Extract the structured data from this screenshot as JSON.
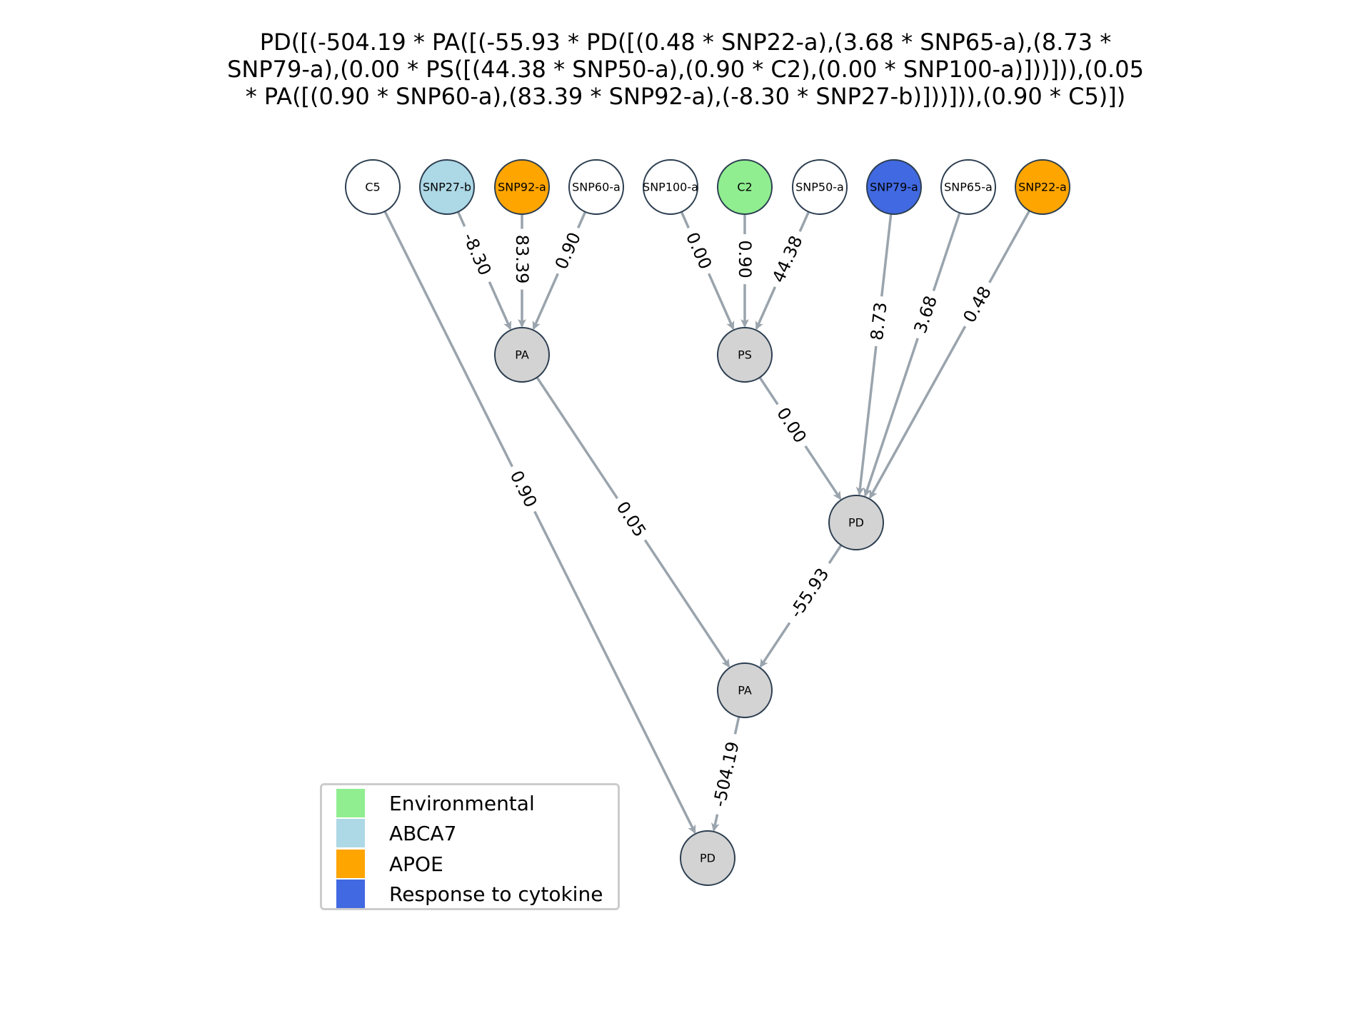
{
  "title_lines": [
    "PD([(-504.19 * PA([(-55.93 * PD([(0.48 * SNP22-a),(3.68 * SNP65-a),(8.73 *",
    "SNP79-a),(0.00 * PS([(44.38 * SNP50-a),(0.90 * C2),(0.00 * SNP100-a)]))])),(0.05",
    "* PA([(0.90 * SNP60-a),(83.39 * SNP92-a),(-8.30 * SNP27-b)]))])),(0.90 * C5)])"
  ],
  "nodes": [
    {
      "id": "C5",
      "label": "C5",
      "color": "#ffffff"
    },
    {
      "id": "SNP27-b",
      "label": "SNP27-b",
      "color": "#add8e6"
    },
    {
      "id": "SNP92-a",
      "label": "SNP92-a",
      "color": "#ffa500"
    },
    {
      "id": "SNP60-a",
      "label": "SNP60-a",
      "color": "#ffffff"
    },
    {
      "id": "SNP100-a",
      "label": "SNP100-a",
      "color": "#ffffff"
    },
    {
      "id": "C2",
      "label": "C2",
      "color": "#90ee90"
    },
    {
      "id": "SNP50-a",
      "label": "SNP50-a",
      "color": "#ffffff"
    },
    {
      "id": "SNP79-a",
      "label": "SNP79-a",
      "color": "#4169e1"
    },
    {
      "id": "SNP65-a",
      "label": "SNP65-a",
      "color": "#ffffff"
    },
    {
      "id": "SNP22-a",
      "label": "SNP22-a",
      "color": "#ffa500"
    },
    {
      "id": "PA1",
      "label": "PA",
      "color": "#d3d3d3"
    },
    {
      "id": "PS",
      "label": "PS",
      "color": "#d3d3d3"
    },
    {
      "id": "PD1",
      "label": "PD",
      "color": "#d3d3d3"
    },
    {
      "id": "PA2",
      "label": "PA",
      "color": "#d3d3d3"
    },
    {
      "id": "PD2",
      "label": "PD",
      "color": "#d3d3d3"
    }
  ],
  "edges": [
    {
      "from": "SNP27-b",
      "to": "PA1",
      "weight": "-8.30"
    },
    {
      "from": "SNP92-a",
      "to": "PA1",
      "weight": "83.39"
    },
    {
      "from": "SNP60-a",
      "to": "PA1",
      "weight": "0.90"
    },
    {
      "from": "SNP100-a",
      "to": "PS",
      "weight": "0.00"
    },
    {
      "from": "C2",
      "to": "PS",
      "weight": "0.90"
    },
    {
      "from": "SNP50-a",
      "to": "PS",
      "weight": "44.38"
    },
    {
      "from": "SNP79-a",
      "to": "PD1",
      "weight": "8.73"
    },
    {
      "from": "SNP65-a",
      "to": "PD1",
      "weight": "3.68"
    },
    {
      "from": "SNP22-a",
      "to": "PD1",
      "weight": "0.48"
    },
    {
      "from": "PS",
      "to": "PD1",
      "weight": "0.00"
    },
    {
      "from": "PD1",
      "to": "PA2",
      "weight": "-55.93"
    },
    {
      "from": "PA1",
      "to": "PA2",
      "weight": "0.05"
    },
    {
      "from": "PA2",
      "to": "PD2",
      "weight": "-504.19"
    },
    {
      "from": "C5",
      "to": "PD2",
      "weight": "0.90"
    }
  ],
  "legend": [
    {
      "label": "Environmental",
      "color": "#90ee90"
    },
    {
      "label": "ABCA7",
      "color": "#add8e6"
    },
    {
      "label": "APOE",
      "color": "#ffa500"
    },
    {
      "label": "Response to cytokine",
      "color": "#4169e1"
    }
  ],
  "colors": {
    "edge": "#9aa4ad",
    "node_border": "#2c3e50"
  }
}
